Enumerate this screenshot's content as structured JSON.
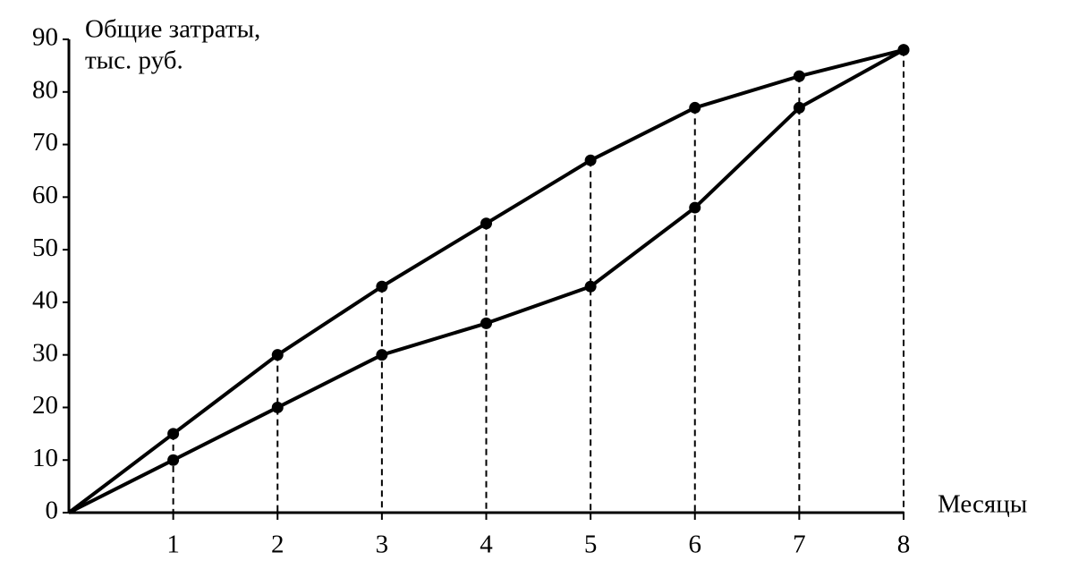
{
  "chart_data": {
    "type": "line",
    "y_label": [
      "Общие затраты,",
      "тыс. руб."
    ],
    "x_label": "Месяцы",
    "x": [
      0,
      1,
      2,
      3,
      4,
      5,
      6,
      7,
      8
    ],
    "series": [
      {
        "color": "#000000",
        "values": [
          0,
          15,
          30,
          43,
          55,
          67,
          77,
          83,
          88
        ]
      },
      {
        "color": "#000000",
        "values": [
          0,
          10,
          20,
          30,
          36,
          43,
          58,
          77,
          88
        ]
      }
    ],
    "xlim": [
      0,
      8
    ],
    "xticks": [
      1,
      2,
      3,
      4,
      5,
      6,
      7,
      8
    ],
    "ylim": [
      0,
      90
    ],
    "yticks": [
      0,
      10,
      20,
      30,
      40,
      50,
      60,
      70,
      80,
      90
    ],
    "grid": false,
    "drop_lines": true
  }
}
